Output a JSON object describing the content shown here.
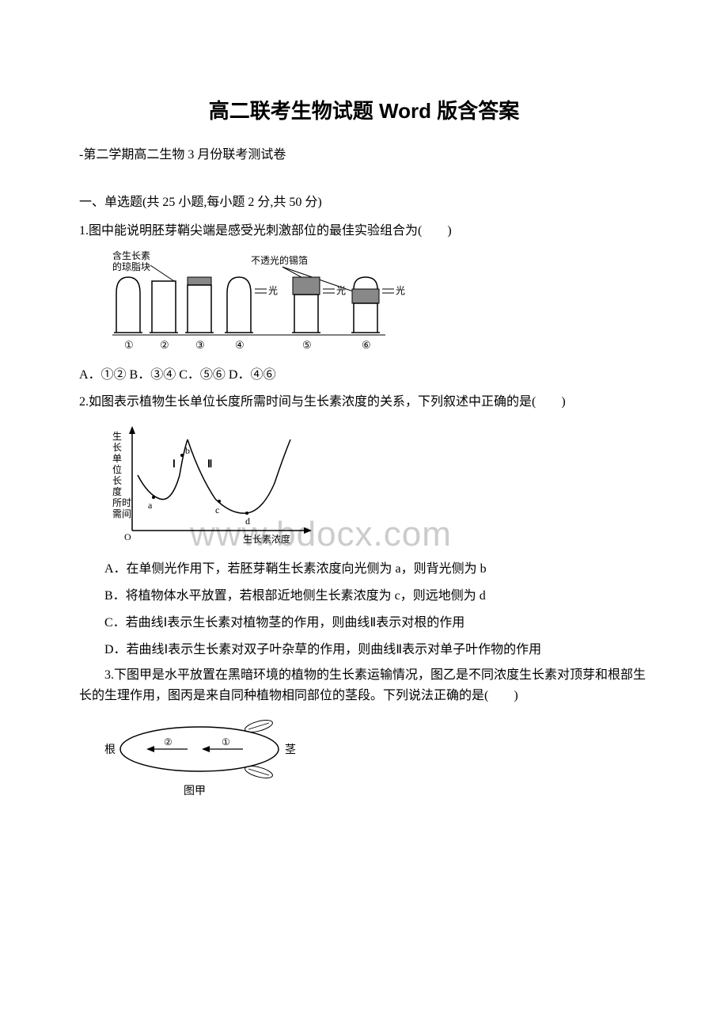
{
  "title": "高二联考生物试题 Word 版含答案",
  "subtitle": "-第二学期高二生物 3 月份联考测试卷",
  "section_header": "一、单选题(共 25 小题,每小题 2 分,共 50 分)",
  "watermark": "www.bdocx.com",
  "q1": {
    "text": "1.图中能说明胚芽鞘尖端是感受光刺激部位的最佳实验组合为(　　)",
    "options": "A．①② B．③④ C．⑤⑥ D．④⑥",
    "figure": {
      "label_left": "含生长素\n的琼脂块",
      "label_right": "不透光的锡箔",
      "light": "光",
      "nums": [
        "①",
        "②",
        "③",
        "④",
        "⑤",
        "⑥"
      ],
      "stroke": "#000000",
      "fill_white": "#ffffff",
      "fill_gray": "#888888"
    }
  },
  "q2": {
    "text": "2.如图表示植物生长单位长度所需时间与生长素浓度的关系，下列叙述中正确的是(　　)",
    "opt_a": "A．在单侧光作用下，若胚芽鞘生长素浓度向光侧为 a，则背光侧为 b",
    "opt_b": "B．将植物体水平放置，若根部近地侧生长素浓度为 c，则远地侧为 d",
    "opt_c": "C．若曲线Ⅰ表示生长素对植物茎的作用，则曲线Ⅱ表示对根的作用",
    "opt_d": "D．若曲线Ⅰ表示生长素对双子叶杂草的作用，则曲线Ⅱ表示对单子叶作物的作用",
    "figure": {
      "ylabel": "生长单位长度所需时间",
      "xlabel": "生长素浓度",
      "labels": [
        "Ⅰ",
        "Ⅱ",
        "a",
        "b",
        "c",
        "d"
      ],
      "origin": "O",
      "stroke": "#000000"
    }
  },
  "q3": {
    "text": "3.下图甲是水平放置在黑暗环境的植物的生长素运输情况，图乙是不同浓度生长素对顶芽和根部生长的生理作用，图丙是来自同种植物相同部位的茎段。下列说法正确的是(　　)",
    "figure": {
      "label_left": "根",
      "label_right": "茎",
      "label_bottom": "图甲",
      "arrow1": "①",
      "arrow2": "②",
      "stroke": "#000000"
    }
  }
}
